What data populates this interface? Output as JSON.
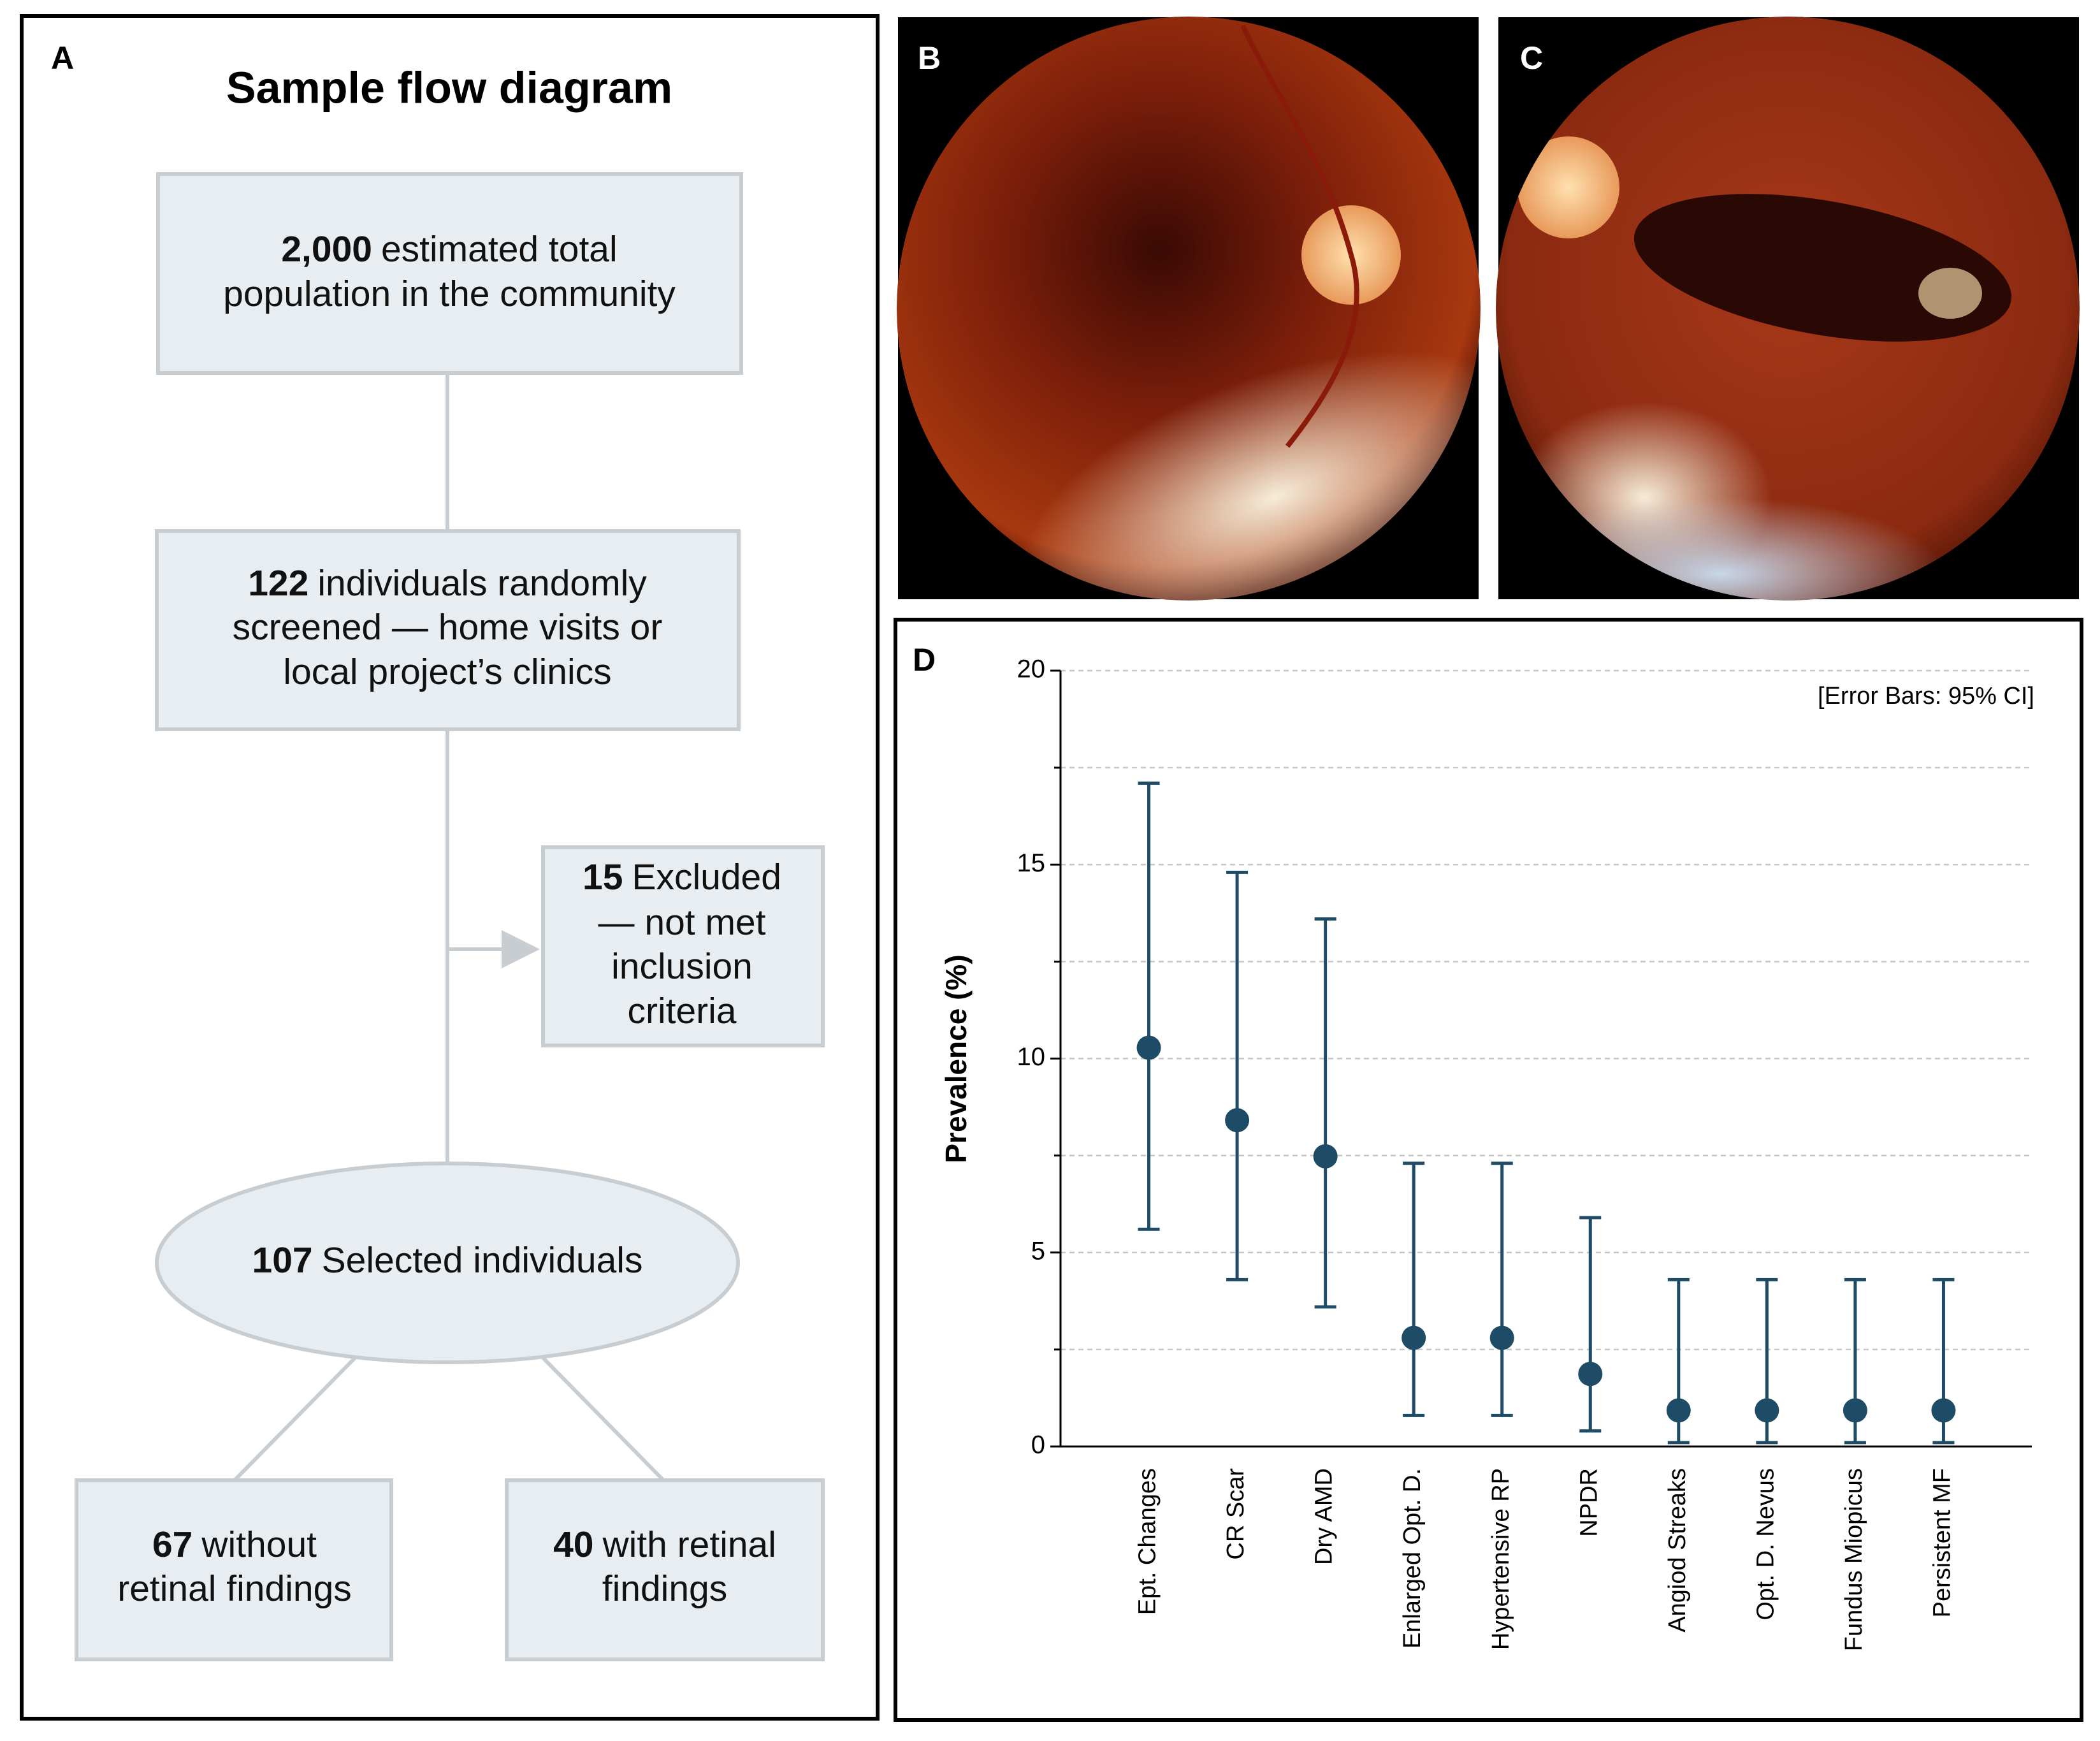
{
  "panels": {
    "a": "A",
    "b": "B",
    "c": "C",
    "d": "D"
  },
  "flow": {
    "title": "Sample flow diagram",
    "nodes": [
      {
        "number": "2,000",
        "lines": [
          "estimated total",
          "population in the community"
        ]
      },
      {
        "number": "122",
        "lines": [
          "individuals randomly",
          "screened — home visits or",
          "local project’s clinics"
        ]
      },
      {
        "number": "15",
        "lines": [
          "Excluded",
          "— not met",
          "inclusion",
          "criteria"
        ]
      },
      {
        "number": "107",
        "lines": [
          "Selected individuals"
        ]
      },
      {
        "number": "67",
        "lines": [
          "without",
          "retinal findings"
        ]
      },
      {
        "number": "40",
        "lines": [
          "with retinal",
          "findings"
        ]
      }
    ]
  },
  "chart_data": {
    "type": "errorbar",
    "ylabel": "Prevalence (%)",
    "annotation": "[Error Bars: 95% CI]",
    "categories": [
      "Ept. Changes",
      "CR Scar",
      "Dry AMD",
      "Enlarged Opt. D.",
      "Hypertensive RP",
      "NPDR",
      "Angiod Streaks",
      "Opt. D. Nevus",
      "Fundus Miopicus",
      "Persistent MF"
    ],
    "series": [
      {
        "color": "#1e4b66",
        "values": [
          10.28,
          8.41,
          7.48,
          2.8,
          2.8,
          1.87,
          0.93,
          0.93,
          0.93,
          0.93
        ],
        "ci_low": [
          5.6,
          4.3,
          3.6,
          0.8,
          0.8,
          0.4,
          0.1,
          0.1,
          0.1,
          0.1
        ],
        "ci_high": [
          17.1,
          14.8,
          13.6,
          7.3,
          7.3,
          5.9,
          4.3,
          4.3,
          4.3,
          4.3
        ]
      }
    ],
    "ylim": [
      0,
      20
    ],
    "yticks": [
      0,
      5,
      10,
      15,
      20
    ],
    "yminor": [
      2.5,
      7.5,
      12.5,
      17.5
    ],
    "grid": true
  }
}
